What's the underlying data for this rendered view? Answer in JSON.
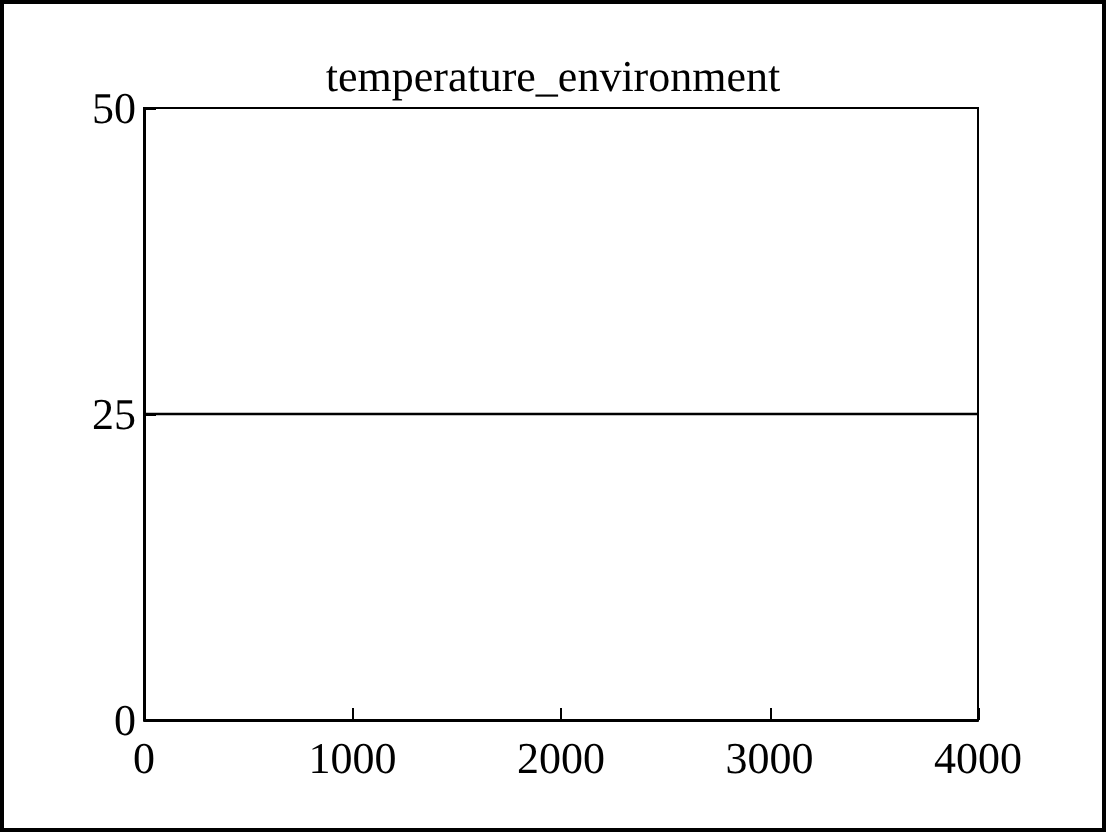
{
  "chart_data": {
    "type": "line",
    "title": "temperature_environment",
    "x": [
      0,
      4000
    ],
    "series": [
      {
        "color": "#000000",
        "values": [
          25,
          25
        ]
      }
    ],
    "xlim": [
      0,
      4000
    ],
    "xticks": [
      0,
      1000,
      2000,
      3000,
      4000
    ],
    "ylim": [
      0,
      50
    ],
    "yticks": [
      0,
      25,
      50
    ],
    "grid": false,
    "marker": "none",
    "line_style": "solid"
  }
}
